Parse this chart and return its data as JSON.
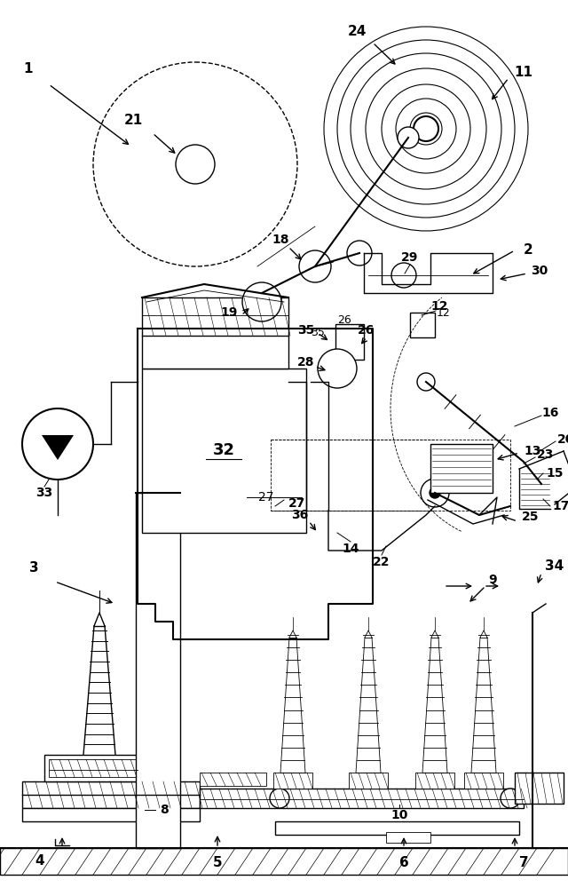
{
  "bg": "#ffffff",
  "lc": "#000000",
  "fw": 6.4,
  "fh": 10.0,
  "dpi": 100
}
